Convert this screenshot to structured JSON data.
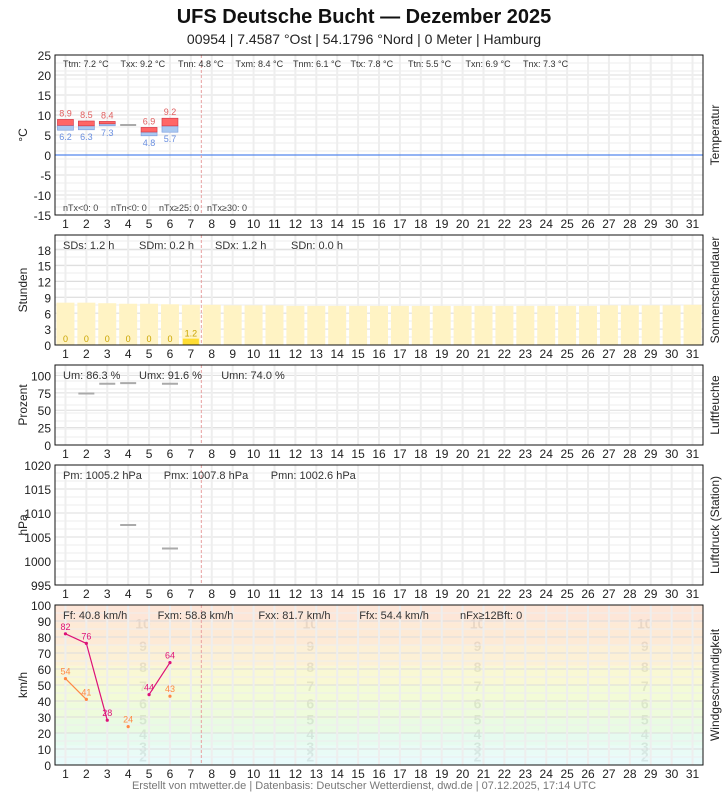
{
  "header": {
    "title": "UFS Deutsche Bucht  —  Dezember 2025",
    "subtitle": "00954  |  7.4587 °Ost  |  54.1796 °Nord  |  0 Meter  |  Hamburg"
  },
  "footer": "Erstellt von mtwetter.de | Datenbasis: Deutscher Wetterdienst, dwd.de | 07.12.2025, 17:14 UTC",
  "colors": {
    "tmax": "#ff6666",
    "tmin": "#aac8f0",
    "sun": "#ffdd33",
    "sun_possible": "#fff3c4",
    "fx": "#dd1177",
    "ff": "#ff8844",
    "today_line": "#e8a0a0",
    "zero_line": "#5588ee"
  },
  "days": [
    "1",
    "2",
    "3",
    "4",
    "5",
    "6",
    "7",
    "8",
    "9",
    "10",
    "11",
    "12",
    "13",
    "14",
    "15",
    "16",
    "17",
    "18",
    "19",
    "20",
    "21",
    "22",
    "23",
    "24",
    "25",
    "26",
    "27",
    "28",
    "29",
    "30",
    "31"
  ],
  "chart_data": [
    {
      "type": "bar",
      "name": "temperature",
      "ylabel": "°C",
      "side_label": "Temperatur",
      "ylim": [
        -15,
        25
      ],
      "yticks": [
        "25",
        "20",
        "15",
        "10",
        "5",
        "0",
        "-5",
        "-10",
        "-15"
      ],
      "stats_top": [
        "Ttm: 7.2 °C",
        "Txx: 9.2 °C",
        "Tnn: 4.8 °C",
        "Txm: 8.4 °C",
        "Tnm: 6.1 °C",
        "Ttx: 7.8 °C",
        "Ttn: 5.5 °C",
        "Txn: 6.9 °C",
        "Tnx: 7.3 °C"
      ],
      "stats_bottom": [
        "nTx<0: 0",
        "nTn<0: 0",
        "nTx≥25: 0",
        "nTx≥30: 0"
      ],
      "tmax": [
        8.9,
        8.5,
        8.4,
        null,
        6.9,
        9.2
      ],
      "tmin": [
        6.2,
        6.3,
        7.3,
        null,
        4.8,
        5.7
      ],
      "tmean_only": [
        null,
        null,
        null,
        7.5,
        null,
        null
      ]
    },
    {
      "type": "bar",
      "name": "sunshine",
      "ylabel": "Stunden",
      "side_label": "Sonnenscheindauer",
      "ylim": [
        0,
        20.8
      ],
      "yticks": [
        "18",
        "15",
        "12",
        "9",
        "6",
        "3",
        "0"
      ],
      "stats_top": [
        "SDs: 1.2 h",
        "SDm: 0.2 h",
        "SDx: 1.2 h",
        "SDn: 0.0 h"
      ],
      "values": [
        0,
        0,
        0,
        0,
        0,
        0,
        1.2
      ],
      "labels": [
        "0",
        "0",
        "0",
        "0",
        "0",
        "0",
        "1.2"
      ],
      "possible": [
        8.0,
        8.0,
        7.9,
        7.8,
        7.8,
        7.7,
        7.6,
        7.6,
        7.5,
        7.5,
        7.5,
        7.4,
        7.4,
        7.4,
        7.4,
        7.4,
        7.4,
        7.4,
        7.4,
        7.4,
        7.4,
        7.4,
        7.4,
        7.4,
        7.4,
        7.4,
        7.5,
        7.5,
        7.5,
        7.5,
        7.6
      ]
    },
    {
      "type": "line",
      "name": "humidity",
      "ylabel": "Prozent",
      "side_label": "Luftfeuchte",
      "ylim": [
        0,
        115
      ],
      "yticks": [
        "100",
        "75",
        "50",
        "25",
        "0"
      ],
      "stats_top": [
        "Um: 86.3 %",
        "Umx: 91.6 %",
        "Umn: 74.0 %"
      ],
      "values": [
        null,
        74,
        88,
        89,
        null,
        88
      ]
    },
    {
      "type": "line",
      "name": "pressure",
      "ylabel": "hPa",
      "side_label": "Luftdruck (Station)",
      "ylim": [
        995,
        1020
      ],
      "yticks": [
        "1020",
        "1015",
        "1010",
        "1005",
        "1000",
        "995"
      ],
      "stats_top": [
        "Pm: 1005.2 hPa",
        "Pmx: 1007.8 hPa",
        "Pmn: 1002.6 hPa"
      ],
      "values": [
        null,
        null,
        null,
        1007.5,
        null,
        1002.6
      ]
    },
    {
      "type": "line",
      "name": "wind",
      "ylabel": "km/h",
      "side_label": "Windgeschwindigkeit",
      "ylim": [
        0,
        100
      ],
      "yticks": [
        "100",
        "90",
        "80",
        "70",
        "60",
        "50",
        "40",
        "30",
        "20",
        "10",
        "0"
      ],
      "stats_top": [
        "Ff: 40.8 km/h",
        "Fxm: 58.8 km/h",
        "Fxx: 81.7 km/h",
        "Ffx: 54.4 km/h",
        "nFx≥12Bft: 0"
      ],
      "beaufort": [
        "2",
        "3",
        "4",
        "5",
        "6",
        "7",
        "8",
        "9",
        "10"
      ],
      "series": [
        {
          "name": "Fx",
          "values": [
            82,
            76,
            28,
            null,
            44,
            64
          ],
          "labels": [
            "82",
            "76",
            "28",
            "",
            "44",
            "64"
          ]
        },
        {
          "name": "Ff",
          "values": [
            54,
            41,
            null,
            24,
            null,
            43
          ],
          "labels": [
            "54",
            "41",
            "",
            "24",
            "",
            "43"
          ]
        }
      ]
    }
  ]
}
